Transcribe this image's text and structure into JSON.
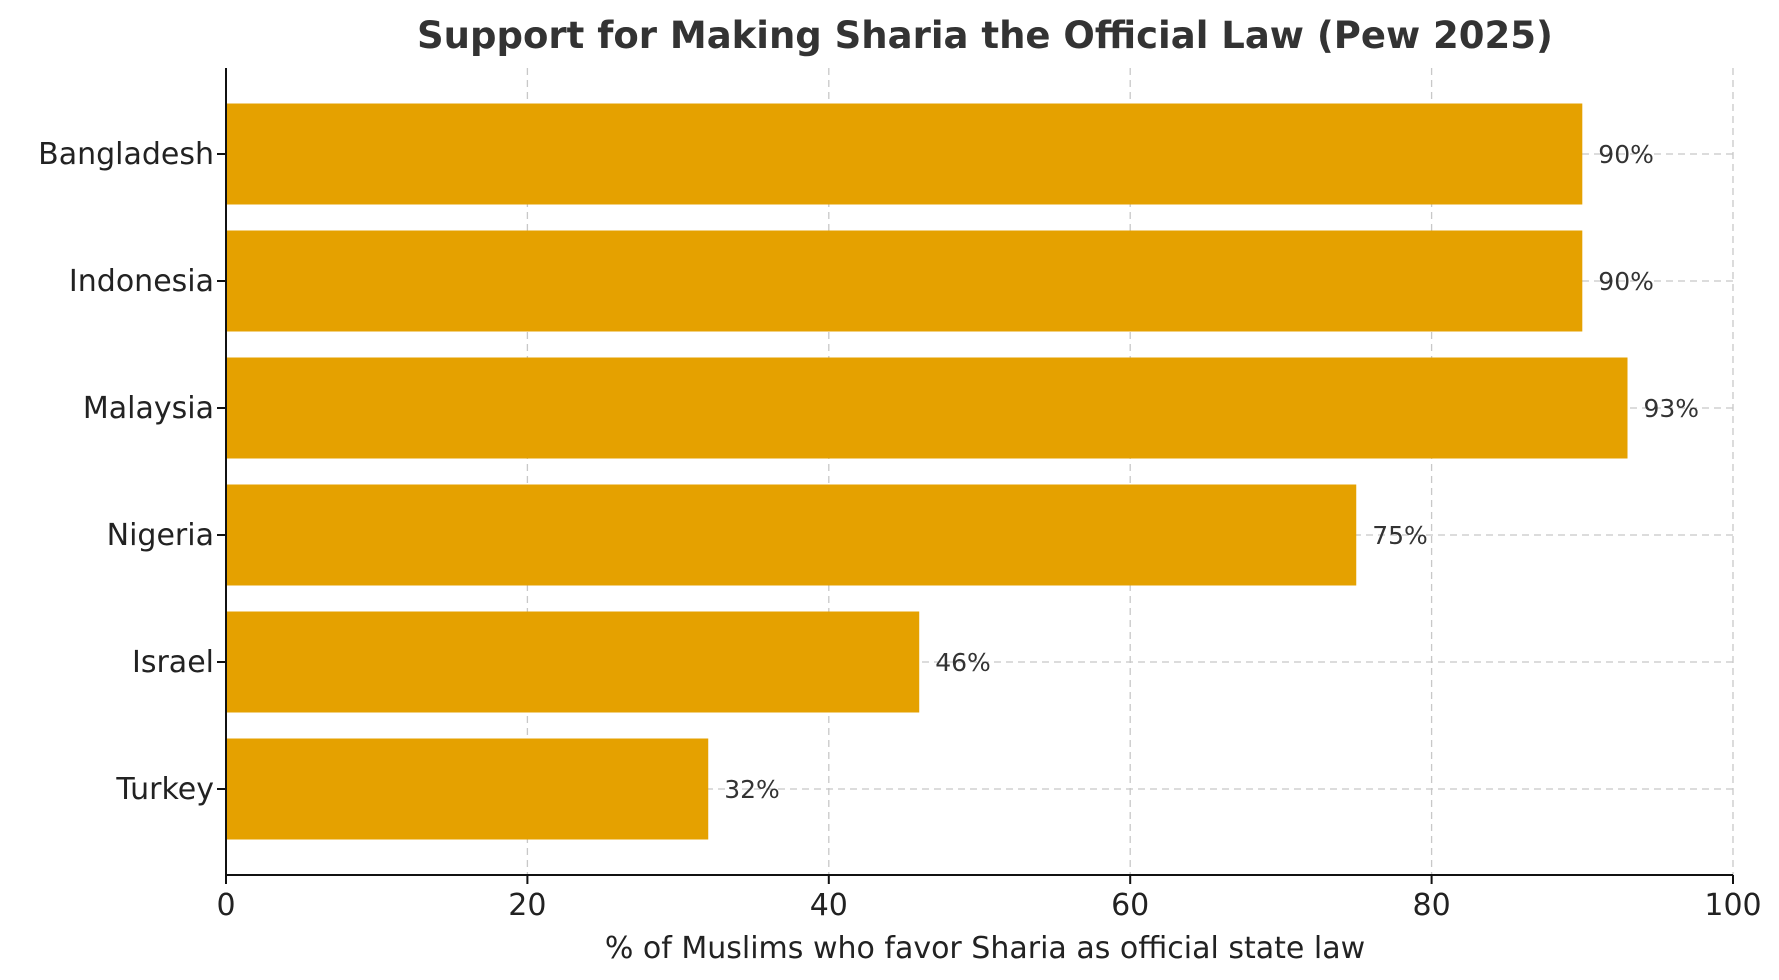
{
  "chart_data": {
    "type": "bar",
    "orientation": "horizontal",
    "title": "Support for Making Sharia the Official Law (Pew 2025)",
    "xlabel": "% of Muslims who favor Sharia as official state law",
    "ylabel": "",
    "xlim": [
      0,
      100
    ],
    "xticks": [
      0,
      20,
      40,
      60,
      80,
      100
    ],
    "grid": true,
    "bar_color": "#E5A100",
    "categories": [
      "Bangladesh",
      "Indonesia",
      "Malaysia",
      "Nigeria",
      "Israel",
      "Turkey"
    ],
    "values": [
      90,
      90,
      93,
      75,
      46,
      32
    ],
    "value_labels": [
      "90%",
      "90%",
      "93%",
      "75%",
      "46%",
      "32%"
    ]
  }
}
